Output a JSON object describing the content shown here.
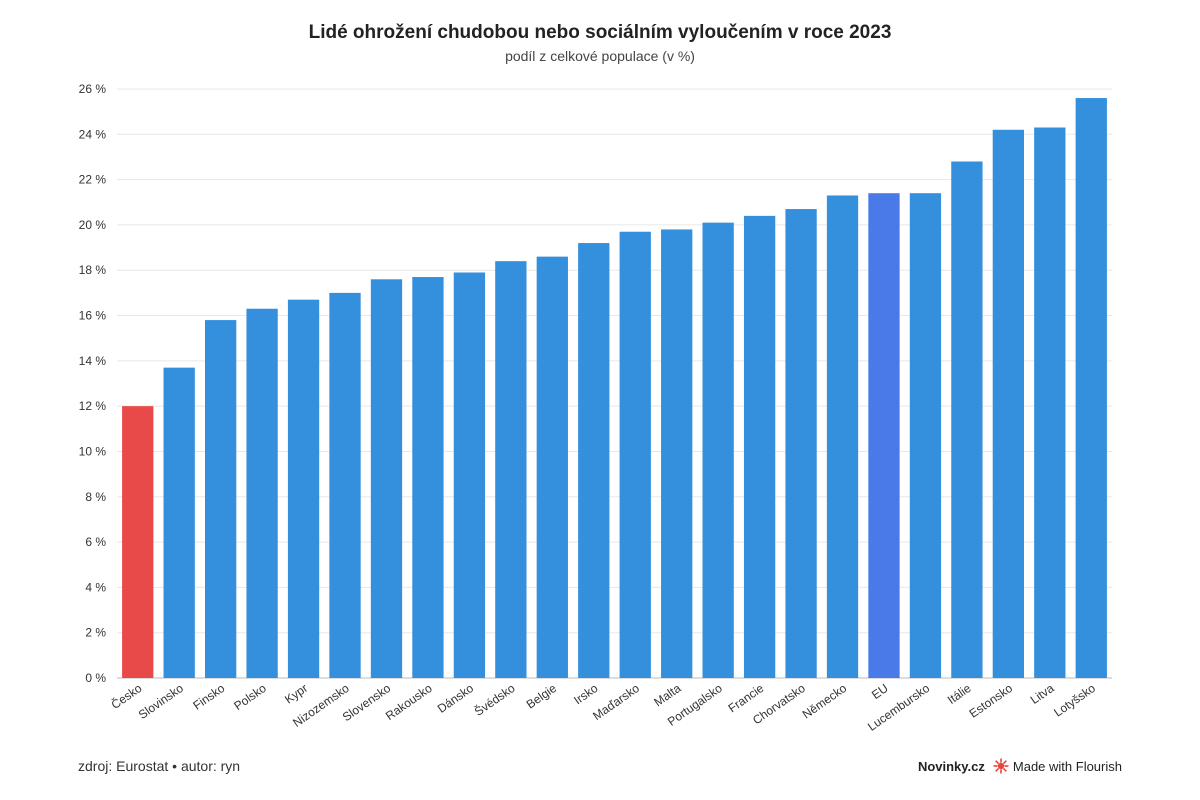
{
  "chart_data": {
    "type": "bar",
    "title": "Lidé ohrožení chudobou nebo sociálním vyloučením v roce 2023",
    "subtitle": "podíl z celkové populace (v %)",
    "categories": [
      "Česko",
      "Slovinsko",
      "Finsko",
      "Polsko",
      "Kypr",
      "Nizozemsko",
      "Slovensko",
      "Rakousko",
      "Dánsko",
      "Švédsko",
      "Belgie",
      "Irsko",
      "Maďarsko",
      "Malta",
      "Portugalsko",
      "Francie",
      "Chorvatsko",
      "Německo",
      "EU",
      "Lucembursko",
      "Itálie",
      "Estonsko",
      "Litva",
      "Lotyšsko"
    ],
    "values": [
      12.0,
      13.7,
      15.8,
      16.3,
      16.7,
      17.0,
      17.6,
      17.7,
      17.9,
      18.4,
      18.6,
      19.2,
      19.7,
      19.8,
      20.1,
      20.4,
      20.7,
      21.3,
      21.4,
      21.4,
      22.8,
      24.2,
      24.3,
      25.6
    ],
    "highlight": {
      "Česko": "#e84a4a",
      "EU": "#4a7ae8"
    },
    "default_color": "#3490dc",
    "ylim": [
      0,
      26
    ],
    "yticks": [
      0,
      2,
      4,
      6,
      8,
      10,
      12,
      14,
      16,
      18,
      20,
      22,
      24,
      26
    ],
    "ytick_suffix": " %",
    "xlabel": "",
    "ylabel": "",
    "grid": true,
    "legend": "none"
  },
  "footer": {
    "source": "zdroj: Eurostat • autor: ryn",
    "brand": "Novinky.cz",
    "flourish": "Made with Flourish",
    "flourish_color": "#e8453c"
  }
}
